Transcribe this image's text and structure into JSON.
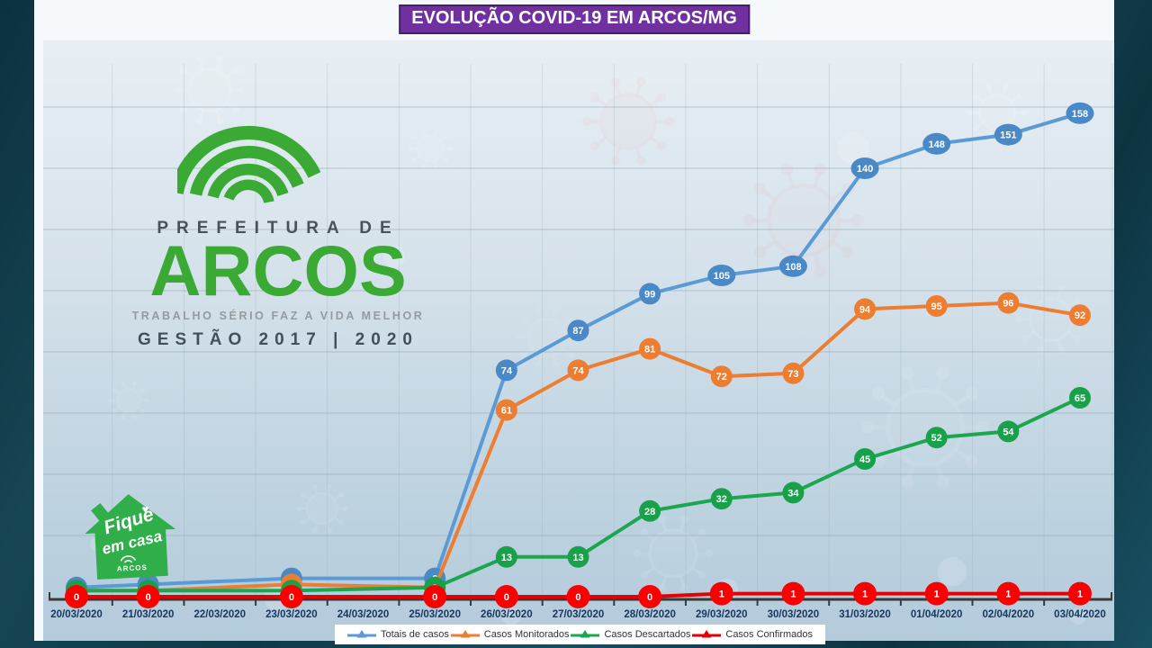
{
  "title": {
    "text": "EVOLUÇÃO COVID-19 EM ARCOS/MG",
    "bg_color": "#7030a0",
    "text_color": "#ffffff"
  },
  "logo": {
    "line1": "PREFEITURA DE",
    "line2": "ARCOS",
    "line3": "TRABALHO SÉRIO FAZ A VIDA MELHOR",
    "line4": "GESTÃO 2017 | 2020",
    "green": "#3aaa35"
  },
  "badge": {
    "line1": "Fique",
    "line2": "em casa",
    "sub": "ARCOS",
    "heart": "♥",
    "bg": "#2fae49"
  },
  "chart_data": {
    "type": "line",
    "title": "EVOLUÇÃO COVID-19 EM ARCOS/MG",
    "categories": [
      "20/03/2020",
      "21/03/2020",
      "22/03/2020",
      "23/03/2020",
      "24/03/2020",
      "25/03/2020",
      "26/03/2020",
      "27/03/2020",
      "28/03/2020",
      "29/03/2020",
      "30/03/2020",
      "31/03/2020",
      "01/04/2020",
      "02/04/2020",
      "03/04/2020"
    ],
    "series": [
      {
        "name": "Totais de casos",
        "color": "#5b9bd5",
        "marker_color": "#4a89c6",
        "values": [
          3,
          4,
          null,
          6,
          null,
          6,
          74,
          87,
          99,
          105,
          108,
          140,
          148,
          151,
          158
        ]
      },
      {
        "name": "Casos Monitorados",
        "color": "#ed7d31",
        "marker_color": "#ed7d31",
        "values": [
          2,
          2,
          null,
          4,
          null,
          3,
          61,
          74,
          81,
          72,
          73,
          94,
          95,
          96,
          92
        ]
      },
      {
        "name": "Casos Descartados",
        "color": "#1aa74d",
        "marker_color": "#19a04a",
        "values": [
          2,
          2,
          null,
          2,
          null,
          3,
          13,
          13,
          28,
          32,
          34,
          45,
          52,
          54,
          65
        ]
      },
      {
        "name": "Casos Confirmados",
        "color": "#e60000",
        "marker_color": "#fa0000",
        "values": [
          0,
          0,
          null,
          0,
          null,
          0,
          0,
          0,
          0,
          1,
          1,
          1,
          1,
          1,
          1
        ]
      }
    ],
    "ylim": [
      0,
      175
    ],
    "gridline_step": 20,
    "grid": true,
    "legend_position": "bottom",
    "xlabel": "",
    "ylabel": ""
  }
}
